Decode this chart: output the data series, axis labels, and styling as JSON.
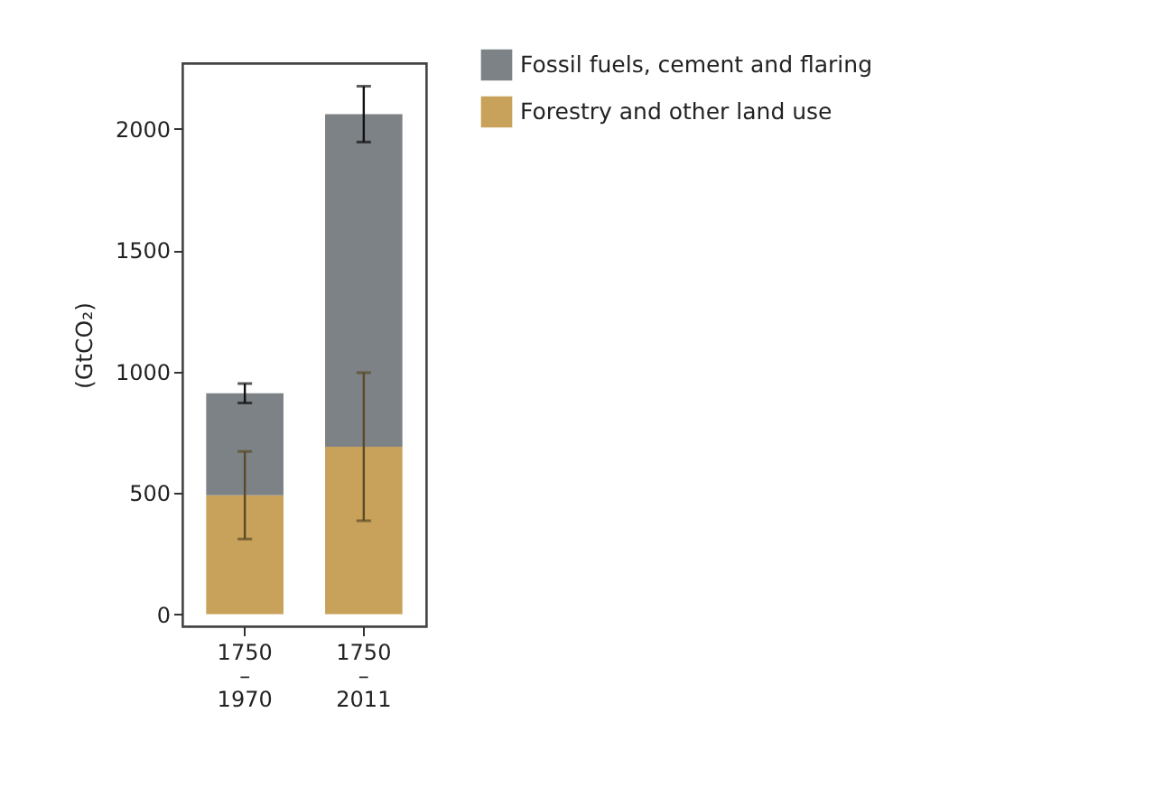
{
  "chart_data": {
    "type": "bar",
    "stacked": true,
    "ylabel": "(GtCO₂)",
    "categories": [
      "1750\n–\n1970",
      "1750\n–\n2011"
    ],
    "series": [
      {
        "name": "Forestry and other land use",
        "color": "#c8a25a",
        "values": [
          490,
          690
        ],
        "errors": [
          180,
          305
        ]
      },
      {
        "name": "Fossil fuels, cement and flaring",
        "color": "#7d8286",
        "values": [
          420,
          1370
        ],
        "errors": [
          40,
          115
        ]
      }
    ],
    "ylim": [
      -50,
      2270
    ],
    "yticks": [
      0,
      500,
      1000,
      1500,
      2000
    ],
    "grid": false,
    "legend": "top right"
  }
}
